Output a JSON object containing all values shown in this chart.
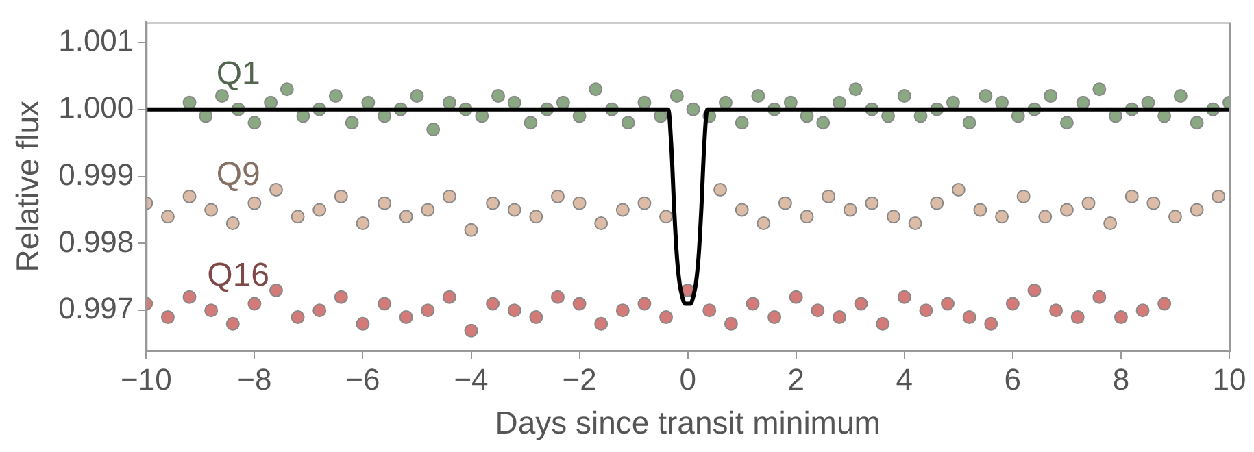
{
  "chart_data": {
    "type": "scatter",
    "xlabel": "Days since transit minimum",
    "ylabel": "Relative flux",
    "xlim": [
      -10,
      10
    ],
    "xticks": [
      -10,
      -8,
      -6,
      -4,
      -2,
      0,
      2,
      4,
      6,
      8,
      10
    ],
    "ylim": [
      0.9964,
      1.0013
    ],
    "yticks": [
      0.997,
      0.998,
      0.999,
      {
        "value": 1.0,
        "label": "1.000"
      },
      1.001
    ],
    "grid": false,
    "legend": false,
    "marker": "circle",
    "series": [
      {
        "name": "Q1",
        "color": "#8aa882",
        "x": [
          -9.2,
          -8.9,
          -8.6,
          -8.3,
          -8.0,
          -7.7,
          -7.4,
          -7.1,
          -6.8,
          -6.5,
          -6.2,
          -5.9,
          -5.6,
          -5.3,
          -5.0,
          -4.7,
          -4.4,
          -4.1,
          -3.8,
          -3.5,
          -3.2,
          -2.9,
          -2.6,
          -2.3,
          -2.0,
          -1.7,
          -1.4,
          -1.1,
          -0.8,
          -0.5,
          -0.2,
          0.1,
          0.4,
          0.7,
          1.0,
          1.3,
          1.6,
          1.9,
          2.2,
          2.5,
          2.8,
          3.1,
          3.4,
          3.7,
          4.0,
          4.3,
          4.6,
          4.9,
          5.2,
          5.5,
          5.8,
          6.1,
          6.4,
          6.7,
          7.0,
          7.3,
          7.6,
          7.9,
          8.2,
          8.5,
          8.8,
          9.1,
          9.4,
          9.7,
          10.0
        ],
        "values": [
          1.0001,
          0.9999,
          1.0002,
          1.0,
          0.9998,
          1.0001,
          1.0003,
          0.9999,
          1.0,
          1.0002,
          0.9998,
          1.0001,
          0.9999,
          1.0,
          1.0002,
          0.9997,
          1.0001,
          1.0,
          0.9999,
          1.0002,
          1.0001,
          0.9998,
          1.0,
          1.0001,
          0.9999,
          1.0003,
          1.0,
          0.9998,
          1.0001,
          0.9999,
          1.0002,
          1.0,
          0.9999,
          1.0001,
          0.9998,
          1.0002,
          1.0,
          1.0001,
          0.9999,
          0.9998,
          1.0001,
          1.0003,
          1.0,
          0.9999,
          1.0002,
          0.9999,
          1.0,
          1.0001,
          0.9998,
          1.0002,
          1.0001,
          0.9999,
          1.0,
          1.0002,
          0.9998,
          1.0001,
          1.0003,
          0.9999,
          1.0,
          1.0001,
          0.9999,
          1.0002,
          0.9998,
          1.0,
          1.0001
        ]
      },
      {
        "name": "Q9",
        "color": "#dcbca6",
        "x": [
          -10,
          -9.6,
          -9.2,
          -8.8,
          -8.4,
          -8.0,
          -7.6,
          -7.2,
          -6.8,
          -6.4,
          -6.0,
          -5.6,
          -5.2,
          -4.8,
          -4.4,
          -4.0,
          -3.6,
          -3.2,
          -2.8,
          -2.4,
          -2.0,
          -1.6,
          -1.2,
          -0.8,
          -0.4,
          0.6,
          1.0,
          1.4,
          1.8,
          2.2,
          2.6,
          3.0,
          3.4,
          3.8,
          4.2,
          4.6,
          5.0,
          5.4,
          5.8,
          6.2,
          6.6,
          7.0,
          7.4,
          7.8,
          8.2,
          8.6,
          9.0,
          9.4,
          9.8
        ],
        "values": [
          0.9986,
          0.9984,
          0.9987,
          0.9985,
          0.9983,
          0.9986,
          0.9988,
          0.9984,
          0.9985,
          0.9987,
          0.9983,
          0.9986,
          0.9984,
          0.9985,
          0.9987,
          0.9982,
          0.9986,
          0.9985,
          0.9984,
          0.9987,
          0.9986,
          0.9983,
          0.9985,
          0.9986,
          0.9984,
          0.9988,
          0.9985,
          0.9983,
          0.9986,
          0.9984,
          0.9987,
          0.9985,
          0.9986,
          0.9984,
          0.9983,
          0.9986,
          0.9988,
          0.9985,
          0.9984,
          0.9987,
          0.9984,
          0.9985,
          0.9986,
          0.9983,
          0.9987,
          0.9986,
          0.9984,
          0.9985,
          0.9987
        ]
      },
      {
        "name": "Q16",
        "color": "#d47a78",
        "x": [
          -10,
          -9.6,
          -9.2,
          -8.8,
          -8.4,
          -8.0,
          -7.6,
          -7.2,
          -6.8,
          -6.4,
          -6.0,
          -5.6,
          -5.2,
          -4.8,
          -4.4,
          -4.0,
          -3.6,
          -3.2,
          -2.8,
          -2.4,
          -2.0,
          -1.6,
          -1.2,
          -0.8,
          -0.4,
          0,
          0.4,
          0.8,
          1.2,
          1.6,
          2.0,
          2.4,
          2.8,
          3.2,
          3.6,
          4.0,
          4.4,
          4.8,
          5.2,
          5.6,
          6.0,
          6.4,
          6.8,
          7.2,
          7.6,
          8.0,
          8.4,
          8.8
        ],
        "values": [
          0.9971,
          0.9969,
          0.9972,
          0.997,
          0.9968,
          0.9971,
          0.9973,
          0.9969,
          0.997,
          0.9972,
          0.9968,
          0.9971,
          0.9969,
          0.997,
          0.9972,
          0.9967,
          0.9971,
          0.997,
          0.9969,
          0.9972,
          0.9971,
          0.9968,
          0.997,
          0.9971,
          0.9969,
          0.9973,
          0.997,
          0.9968,
          0.9971,
          0.9969,
          0.9972,
          0.997,
          0.9969,
          0.9971,
          0.9968,
          0.9972,
          0.997,
          0.9971,
          0.9969,
          0.9968,
          0.9971,
          0.9973,
          0.997,
          0.9969,
          0.9972,
          0.9969,
          0.997,
          0.9971
        ]
      },
      {
        "type": "line",
        "color": "#000000",
        "marker": "none",
        "line_style": "solid",
        "x": [
          -10,
          -0.36,
          -0.3,
          -0.25,
          -0.2,
          -0.15,
          -0.1,
          -0.05,
          0,
          0.05,
          0.1,
          0.15,
          0.2,
          0.25,
          0.3,
          0.36,
          10
        ],
        "values": [
          1.0,
          1.0,
          0.9994,
          0.9985,
          0.9978,
          0.9974,
          0.9972,
          0.9971,
          0.9971,
          0.9971,
          0.9972,
          0.9974,
          0.9978,
          0.9985,
          0.9994,
          1.0,
          1.0
        ]
      }
    ]
  }
}
